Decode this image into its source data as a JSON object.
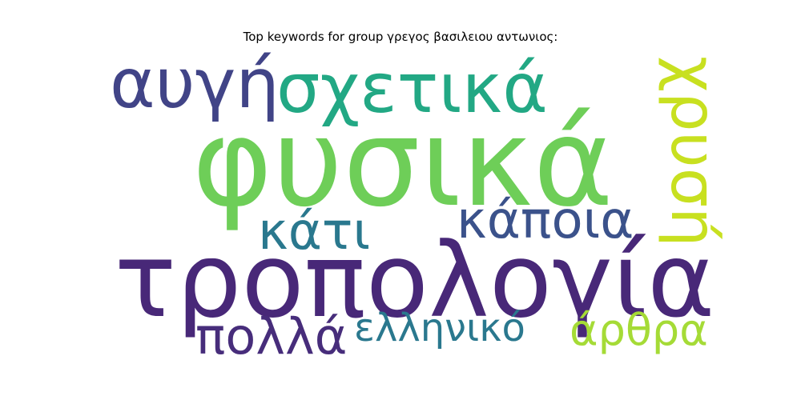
{
  "title": "Top keywords for group γρεγος βασιλειου αντωνιος:",
  "words": [
    {
      "text": "φυσικά",
      "color": "#6ece58"
    },
    {
      "text": "τροπολογία",
      "color": "#482878"
    },
    {
      "text": "σχετικά",
      "color": "#22a884"
    },
    {
      "text": "αυγή",
      "color": "#414487"
    },
    {
      "text": "κάποια",
      "color": "#3b528b"
    },
    {
      "text": "κάτι",
      "color": "#2a788e"
    },
    {
      "text": "πολλά",
      "color": "#472d7b"
    },
    {
      "text": "ελληνικό",
      "color": "#2a788e"
    },
    {
      "text": "άρθρα",
      "color": "#a5db36"
    },
    {
      "text": "χρυσή",
      "color": "#c8e020"
    }
  ]
}
